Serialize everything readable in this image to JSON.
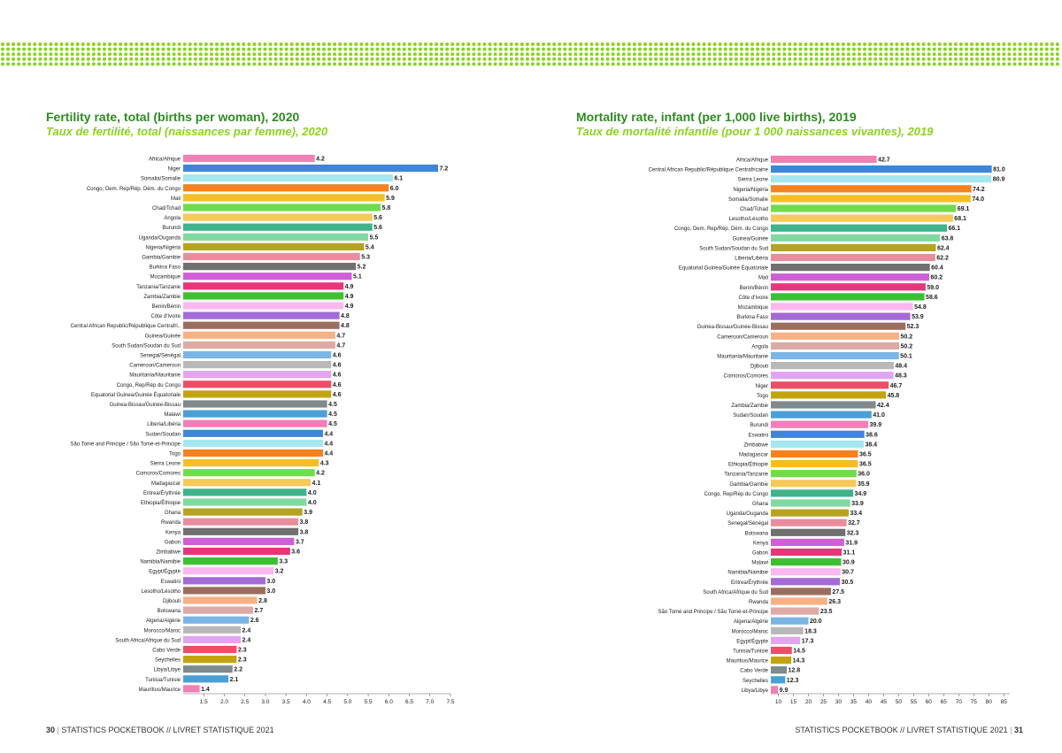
{
  "colors": {
    "title": "#2e8b22",
    "subtitle": "#8cd31f",
    "dots": "#8cd31f",
    "palette": [
      "#f27fb5",
      "#3f86d6",
      "#a5e7ee",
      "#f5821f",
      "#f5bf24",
      "#71dc4a",
      "#f5c95a",
      "#3fb38a",
      "#7fd9a1",
      "#b5a322",
      "#e98d9c",
      "#707070",
      "#cf5ed7",
      "#e8357a",
      "#3dbf32",
      "#f9b9ef",
      "#a46ad7",
      "#9a6e5f",
      "#f7b184",
      "#deaaa6",
      "#7bb5e6",
      "#b8b8b8",
      "#e2a5ef",
      "#ea4f68",
      "#c2a40e",
      "#7e8a8c",
      "#4aa0d4"
    ]
  },
  "left": {
    "title": "Fertility rate, total (births per woman), 2020",
    "subtitle": "Taux de fertilité, total (naissances par femme), 2020"
  },
  "right": {
    "title": "Mortality rate, infant (per 1,000 live births), 2019",
    "subtitle": "Taux de mortalité infantile (pour 1 000 naissances vivantes), 2019"
  },
  "footer": {
    "left_page": "30",
    "left_text": "STATISTICS POCKETBOOK // LIVRET STATISTIQUE 2021",
    "right_text": "STATISTICS POCKETBOOK // LIVRET STATISTIQUE 2021",
    "right_page": "31"
  },
  "chart_data": [
    {
      "type": "bar",
      "orientation": "horizontal",
      "title": "Fertility rate, total (births per woman), 2020",
      "xlim": [
        1.0,
        7.5
      ],
      "ticks": [
        "1.5",
        "2.0",
        "2.5",
        "3.0",
        "3.5",
        "4.0",
        "4.5",
        "5.0",
        "5.5",
        "6.0",
        "6.5",
        "7.0",
        "7.5"
      ],
      "categories": [
        "Africa/Afrique",
        "Niger",
        "Somalia/Somalie",
        "Congo, Dem. Rep/Rép. Dém. du Congo",
        "Mali",
        "Chad/Tchad",
        "Angola",
        "Burundi",
        "Uganda/Ouganda",
        "Nigeria/Nigéria",
        "Gambia/Gambie",
        "Burkina Faso",
        "Mozambique",
        "Tanzania/Tanzanie",
        "Zambia/Zambie",
        "Benin/Bénin",
        "Côte d'Ivoire",
        "Central African Republic/République Centrafri..",
        "Guinea/Guinée",
        "South Sudan/Soudan du Sud",
        "Senegal/Sénégal",
        "Cameroon/Cameroun",
        "Mauritania/Mauritanie",
        "Congo, Rep/Rép du Congo",
        "Equatorial Guinea/Guinée Équatoriale",
        "Guinea-Bissau/Guinée-Bissau",
        "Malawi",
        "Liberia/Libéria",
        "Sudan/Soudan",
        "São Tomé and Principe / São Tomé-et-Principe",
        "Togo",
        "Sierra Leone",
        "Comoros/Comores",
        "Madagascar",
        "Eritrea/Érythrée",
        "Ethiopia/Éthiopie",
        "Ghana",
        "Rwanda",
        "Kenya",
        "Gabon",
        "Zimbabwe",
        "Namibia/Namibie",
        "Egypt/Égypte",
        "Eswatini",
        "Lesotho/Lésotho",
        "Djibouti",
        "Botswana",
        "Algeria/Algérie",
        "Morocco/Maroc",
        "South Africa/Afrique du Sud",
        "Cabo Verde",
        "Seychelles",
        "Libya/Libye",
        "Tunisia/Tunisie",
        "Mauritius/Maurice"
      ],
      "values": [
        4.2,
        7.2,
        6.1,
        6.0,
        5.9,
        5.8,
        5.6,
        5.6,
        5.5,
        5.4,
        5.3,
        5.2,
        5.1,
        4.9,
        4.9,
        4.9,
        4.8,
        4.8,
        4.7,
        4.7,
        4.6,
        4.6,
        4.6,
        4.6,
        4.6,
        4.5,
        4.5,
        4.5,
        4.4,
        4.4,
        4.4,
        4.3,
        4.2,
        4.1,
        4.0,
        4.0,
        3.9,
        3.8,
        3.8,
        3.7,
        3.6,
        3.3,
        3.2,
        3.0,
        3.0,
        2.8,
        2.7,
        2.6,
        2.4,
        2.4,
        2.3,
        2.3,
        2.2,
        2.1,
        1.4
      ],
      "value_labels": [
        "4.2",
        "7.2",
        "6.1",
        "6.0",
        "5.9",
        "5.8",
        "5.6",
        "5.6",
        "5.5",
        "5.4",
        "5.3",
        "5.2",
        "5.1",
        "4.9",
        "4.9",
        "4.9",
        "4.8",
        "4.8",
        "4.7",
        "4.7",
        "4.6",
        "4.6",
        "4.6",
        "4.6",
        "4.6",
        "4.5",
        "4.5",
        "4.5",
        "4.4",
        "4.4",
        "4.4",
        "4.3",
        "4.2",
        "4.1",
        "4.0",
        "4.0",
        "3.9",
        "3.8",
        "3.8",
        "3.7",
        "3.6",
        "3.3",
        "3.2",
        "3.0",
        "3.0",
        "2.8",
        "2.7",
        "2.6",
        "2.4",
        "2.4",
        "2.3",
        "2.3",
        "2.2",
        "2.1",
        "1.4"
      ],
      "grid": false,
      "legend": "none"
    },
    {
      "type": "bar",
      "orientation": "horizontal",
      "title": "Mortality rate, infant (per 1,000 live births), 2019",
      "xlim": [
        7.5,
        87
      ],
      "ticks": [
        "10",
        "15",
        "20",
        "25",
        "30",
        "35",
        "40",
        "45",
        "50",
        "55",
        "60",
        "65",
        "70",
        "75",
        "80",
        "85"
      ],
      "categories": [
        "Africa/Afrique",
        "Central African Republic/République Centrafricaine",
        "Sierra Leone",
        "Nigeria/Nigéria",
        "Somalia/Somalie",
        "Chad/Tchad",
        "Lesotho/Lésotho",
        "Congo, Dem. Rep/Rép. Dém. du Congo",
        "Guinea/Guinée",
        "South Sudan/Soudan du Sud",
        "Liberia/Libéria",
        "Equatorial Guinea/Guinée Équatoriale",
        "Mali",
        "Benin/Bénin",
        "Côte d'Ivoire",
        "Mozambique",
        "Burkina Faso",
        "Guinea-Bissau/Guinée-Bissau",
        "Cameroon/Cameroun",
        "Angola",
        "Mauritania/Mauritanie",
        "Djibouti",
        "Comoros/Comores",
        "Niger",
        "Togo",
        "Zambia/Zambie",
        "Sudan/Soudan",
        "Burundi",
        "Eswatini",
        "Zimbabwe",
        "Madagascar",
        "Ethiopia/Éthiopie",
        "Tanzania/Tanzanie",
        "Gambia/Gambie",
        "Congo, Rep/Rép du Congo",
        "Ghana",
        "Uganda/Ouganda",
        "Senegal/Sénégal",
        "Botswana",
        "Kenya",
        "Gabon",
        "Malawi",
        "Namibia/Namibie",
        "Eritrea/Érythrée",
        "South Africa/Afrique du Sud",
        "Rwanda",
        "São Tomé and Principe / São Tomé-et-Principe",
        "Algeria/Algérie",
        "Morocco/Maroc",
        "Egypt/Égypte",
        "Tunisia/Tunisie",
        "Mauritius/Maurice",
        "Cabo Verde",
        "Seychelles",
        "Libya/Libye"
      ],
      "values": [
        42.7,
        81.0,
        80.9,
        74.2,
        74.0,
        69.1,
        68.1,
        66.1,
        63.8,
        62.4,
        62.2,
        60.4,
        60.2,
        59.0,
        58.6,
        54.8,
        53.9,
        52.3,
        50.2,
        50.2,
        50.1,
        48.4,
        48.3,
        46.7,
        45.8,
        42.4,
        41.0,
        39.9,
        38.6,
        38.4,
        36.5,
        36.5,
        36.0,
        35.9,
        34.9,
        33.9,
        33.4,
        32.7,
        32.3,
        31.9,
        31.1,
        30.9,
        30.7,
        30.5,
        27.5,
        26.3,
        23.5,
        20.0,
        18.3,
        17.3,
        14.5,
        14.3,
        12.8,
        12.3,
        9.9
      ],
      "value_labels": [
        "42.7",
        "81.0",
        "80.9",
        "74.2",
        "74.0",
        "69.1",
        "68.1",
        "66.1",
        "63.8",
        "62.4",
        "62.2",
        "60.4",
        "60.2",
        "59.0",
        "58.6",
        "54.8",
        "53.9",
        "52.3",
        "50.2",
        "50.2",
        "50.1",
        "48.4",
        "48.3",
        "46.7",
        "45.8",
        "42.4",
        "41.0",
        "39.9",
        "38.6",
        "38.4",
        "36.5",
        "36.5",
        "36.0",
        "35.9",
        "34.9",
        "33.9",
        "33.4",
        "32.7",
        "32.3",
        "31.9",
        "31.1",
        "30.9",
        "30.7",
        "30.5",
        "27.5",
        "26.3",
        "23.5",
        "20.0",
        "18.3",
        "17.3",
        "14.5",
        "14.3",
        "12.8",
        "12.3",
        "9.9"
      ],
      "grid": false,
      "legend": "none"
    }
  ]
}
